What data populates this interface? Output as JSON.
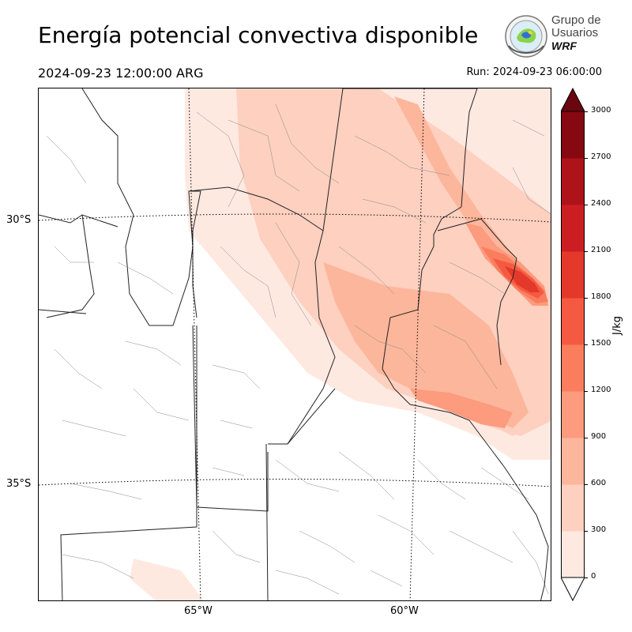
{
  "header": {
    "title": "Energía potencial convectiva disponible",
    "valid_time": "2024-09-23 12:00:00 ARG",
    "run_time": "Run: 2024-09-23 06:00:00"
  },
  "logo": {
    "line1": "Grupo de",
    "line2": "Usuarios",
    "line3": "WRF"
  },
  "map": {
    "lat_labels": [
      "30°S",
      "35°S"
    ],
    "lon_labels": [
      "65°W",
      "60°W"
    ]
  },
  "colorbar": {
    "unit": "J/kg",
    "ticks": [
      "0",
      "300",
      "600",
      "900",
      "1200",
      "1500",
      "1800",
      "2100",
      "2400",
      "2700",
      "3000"
    ],
    "colors": [
      "#fee9e1",
      "#fdd0c0",
      "#fcb69c",
      "#fc9b7d",
      "#fa7d5e",
      "#f45a41",
      "#e4382b",
      "#cc1e22",
      "#ae131a",
      "#860811"
    ],
    "extend_min_color": "#ffffff",
    "extend_max_color": "#6b0510"
  }
}
